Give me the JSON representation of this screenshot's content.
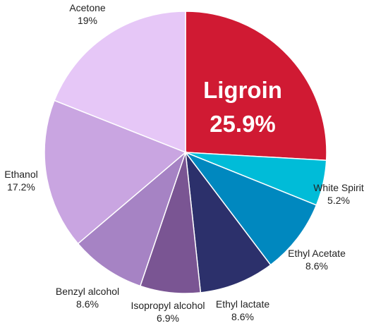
{
  "chart_data": {
    "type": "pie",
    "title": "",
    "start": "12 o'clock",
    "direction": "clockwise",
    "slices": [
      {
        "label": "Ligroin",
        "value": 25.9,
        "value_text": "25.9%",
        "color": "#d01a33",
        "highlight": true
      },
      {
        "label": "White Spirit",
        "value": 5.2,
        "value_text": "5.2%",
        "color": "#00bcd8"
      },
      {
        "label": "Ethyl Acetate",
        "value": 8.6,
        "value_text": "8.6%",
        "color": "#0088bf"
      },
      {
        "label": "Ethyl lactate",
        "value": 8.6,
        "value_text": "8.6%",
        "color": "#2c306b"
      },
      {
        "label": "Isopropyl alcohol",
        "value": 6.9,
        "value_text": "6.9%",
        "color": "#7a5593"
      },
      {
        "label": "Benzyl alcohol",
        "value": 8.6,
        "value_text": "8.6%",
        "color": "#a683c4"
      },
      {
        "label": "Ethanol",
        "value": 17.2,
        "value_text": "17.2%",
        "color": "#c9a5e1"
      },
      {
        "label": "Acetone",
        "value": 19,
        "value_text": "19%",
        "color": "#e6c7f7"
      }
    ]
  }
}
